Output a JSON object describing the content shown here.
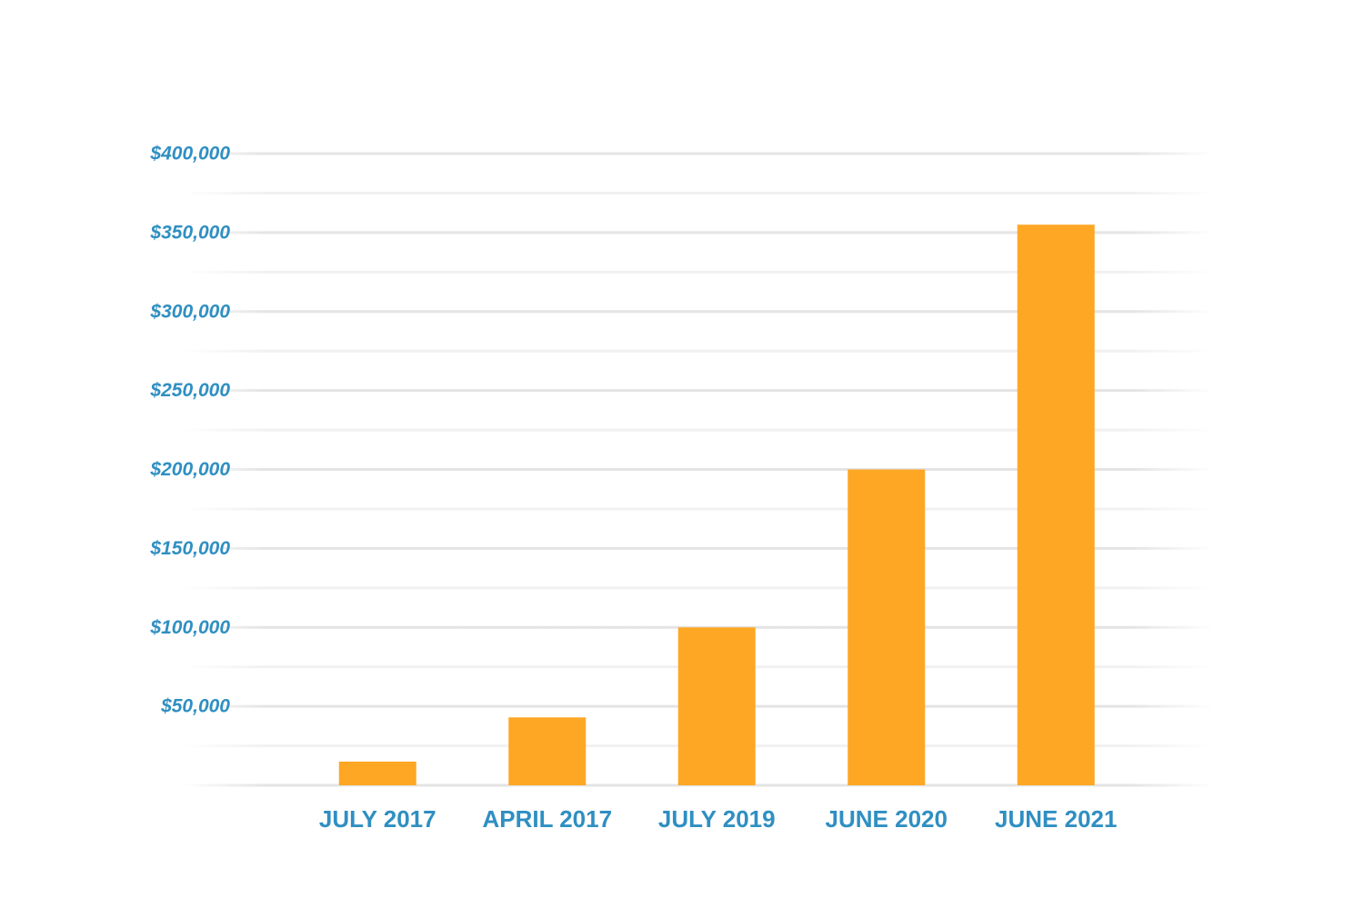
{
  "chart_data": {
    "type": "bar",
    "categories": [
      "JULY 2017",
      "APRIL 2017",
      "JULY 2019",
      "JUNE 2020",
      "JUNE 2021"
    ],
    "values": [
      15000,
      43000,
      100000,
      200000,
      355000
    ],
    "color": "#fea725",
    "ylim": [
      0,
      400000
    ],
    "yticks": [
      {
        "value": 50000,
        "label": "$50,000"
      },
      {
        "value": 100000,
        "label": "$100,000"
      },
      {
        "value": 150000,
        "label": "$150,000"
      },
      {
        "value": 200000,
        "label": "$200,000"
      },
      {
        "value": 250000,
        "label": "$250,000"
      },
      {
        "value": 300000,
        "label": "$300,000"
      },
      {
        "value": 350000,
        "label": "$350,000"
      },
      {
        "value": 400000,
        "label": "$400,000"
      }
    ],
    "minor_yticks": [
      25000,
      75000,
      125000,
      175000,
      225000,
      275000,
      325000,
      375000
    ],
    "grid": true
  }
}
